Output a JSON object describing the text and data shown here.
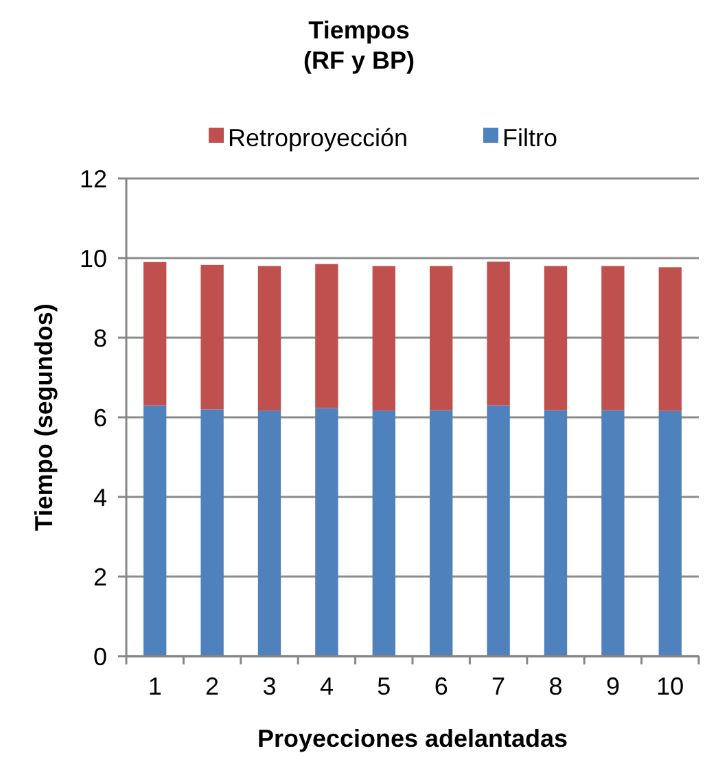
{
  "chart_data": {
    "type": "bar",
    "title": "Tiempos (RF y BP)",
    "xlabel": "Proyecciones adelantadas",
    "ylabel": "Tiempo (segundos)",
    "categories": [
      "1",
      "2",
      "3",
      "4",
      "5",
      "6",
      "7",
      "8",
      "9",
      "10"
    ],
    "series": [
      {
        "name": "Filtro",
        "color": "#4f81bd",
        "values": [
          6.3,
          6.2,
          6.17,
          6.23,
          6.17,
          6.18,
          6.3,
          6.18,
          6.18,
          6.16
        ]
      },
      {
        "name": "Retroproyección",
        "color": "#c0504d",
        "values": [
          3.6,
          3.63,
          3.63,
          3.62,
          3.63,
          3.62,
          3.61,
          3.62,
          3.62,
          3.61
        ]
      }
    ],
    "stacked": true,
    "ylim": [
      0,
      12
    ],
    "yticks": [
      0,
      2,
      4,
      6,
      8,
      10,
      12
    ],
    "grid": "y",
    "legend": "top"
  }
}
